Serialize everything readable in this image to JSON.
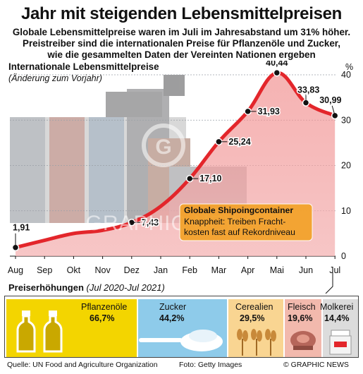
{
  "title": "Jahr mit steigenden Lebensmittelpreisen",
  "subtitle": [
    "Globale Lebensmittelpreise waren im Juli im Jahresabstand um 31% höher.",
    "Preistreiber sind die internationalen Preise für Pflanzenöle und Zucker,",
    "wie die gesammelten Daten der Vereinten Nationen ergeben"
  ],
  "chart_data": {
    "type": "line",
    "title": "Internationale Lebensmittelpreise",
    "subtitle": "(Änderung zum Vorjahr)",
    "unit": "%",
    "categories": [
      "Aug",
      "Sep",
      "Okt",
      "Nov",
      "Dez",
      "Jan",
      "Feb",
      "Mar",
      "Apr",
      "Mai",
      "Jun",
      "Jul"
    ],
    "values": [
      1.91,
      3.5,
      5.0,
      5.7,
      7.43,
      11.0,
      17.1,
      25.24,
      31.93,
      40.44,
      33.83,
      30.99
    ],
    "labeled_points": [
      {
        "index": 0,
        "label": "1,91"
      },
      {
        "index": 4,
        "label": "7,43"
      },
      {
        "index": 6,
        "label": "17,10"
      },
      {
        "index": 7,
        "label": "25,24"
      },
      {
        "index": 8,
        "label": "31,93"
      },
      {
        "index": 9,
        "label": "40,44"
      },
      {
        "index": 10,
        "label": "33,83"
      },
      {
        "index": 11,
        "label": "30,99"
      }
    ],
    "ylim": [
      0,
      40
    ],
    "yticks": [
      "0",
      "10",
      "20",
      "30",
      "40"
    ],
    "grid": true,
    "line_color": "#e3262b"
  },
  "callout": {
    "title": "Globale Shipoingcontainer",
    "lines": [
      "Knappheit: Treiben Fracht-",
      "kosten fast auf Rekordniveau"
    ]
  },
  "watermark": "GRAPHIC NEWS",
  "breakdown": {
    "title": "Preiserhöhungen",
    "period": "(Jul 2020-Jul 2021)",
    "items": [
      {
        "name": "Pflanzenöle",
        "value": "66,7%",
        "color": "#f3d500",
        "icon": "oil-bottles-icon"
      },
      {
        "name": "Zucker",
        "value": "44,2%",
        "color": "#8ecbea",
        "icon": "sugar-spoon-icon"
      },
      {
        "name": "Cerealien",
        "value": "29,5%",
        "color": "#f9d592",
        "icon": "wheat-icon"
      },
      {
        "name": "Fleisch",
        "value": "19,6%",
        "color": "#f2b9ad",
        "icon": "meat-icon"
      },
      {
        "name": "Molkerei",
        "value": "14,4%",
        "color": "#dcdcdc",
        "icon": "milk-can-icon"
      }
    ]
  },
  "footer": {
    "source": "Quelle: UN Food and Agriculture Organization",
    "photo": "Foto: Getty Images",
    "credit": "© GRAPHIC NEWS"
  }
}
